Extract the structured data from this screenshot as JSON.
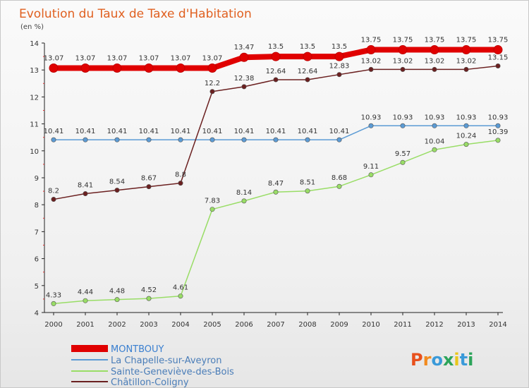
{
  "chart_data": {
    "type": "line",
    "title": "Evolution du Taux de Taxe d'Habitation",
    "unit_label": "(en %)",
    "x": [
      "2000",
      "2001",
      "2002",
      "2003",
      "2004",
      "2005",
      "2006",
      "2007",
      "2008",
      "2009",
      "2010",
      "2011",
      "2012",
      "2013",
      "2014"
    ],
    "ylim": [
      4,
      14
    ],
    "yticks": [
      4,
      5,
      6,
      7,
      8,
      9,
      10,
      11,
      12,
      13,
      14
    ],
    "grid": false,
    "legend_position": "bottom-left",
    "series": [
      {
        "name": "MONTBOUY",
        "color": "#e00000",
        "labels": [
          "13.07",
          "13.07",
          "13.07",
          "13.07",
          "13.07",
          "13.07",
          "13.47",
          "13.5",
          "13.5",
          "13.5",
          "13.75",
          "13.75",
          "13.75",
          "13.75",
          "13.75"
        ],
        "values": [
          13.07,
          13.07,
          13.07,
          13.07,
          13.07,
          13.07,
          13.47,
          13.5,
          13.5,
          13.5,
          13.75,
          13.75,
          13.75,
          13.75,
          13.75
        ]
      },
      {
        "name": "La Chapelle-sur-Aveyron",
        "color": "#5b9bd5",
        "labels": [
          "10.41",
          "10.41",
          "10.41",
          "10.41",
          "10.41",
          "10.41",
          "10.41",
          "10.41",
          "10.41",
          "10.41",
          "10.93",
          "10.93",
          "10.93",
          "10.93",
          "10.93"
        ],
        "values": [
          10.41,
          10.41,
          10.41,
          10.41,
          10.41,
          10.41,
          10.41,
          10.41,
          10.41,
          10.41,
          10.93,
          10.93,
          10.93,
          10.93,
          10.93
        ]
      },
      {
        "name": "Sainte-Geneviève-des-Bois",
        "color": "#99dd66",
        "labels": [
          "4.33",
          "4.44",
          "4.48",
          "4.52",
          "4.61",
          "7.83",
          "8.14",
          "8.47",
          "8.51",
          "8.68",
          "9.11",
          "9.57",
          "10.04",
          "10.24",
          "10.39"
        ],
        "values": [
          4.33,
          4.44,
          4.48,
          4.52,
          4.61,
          7.83,
          8.14,
          8.47,
          8.51,
          8.68,
          9.11,
          9.57,
          10.04,
          10.24,
          10.39
        ]
      },
      {
        "name": "Châtillon-Coligny",
        "color": "#6b2020",
        "labels": [
          "8.2",
          "8.41",
          "8.54",
          "8.67",
          "8.8",
          "12.2",
          "12.38",
          "12.64",
          "12.64",
          "12.83",
          "13.02",
          "13.02",
          "13.02",
          "13.02",
          "13.15"
        ],
        "values": [
          8.2,
          8.41,
          8.54,
          8.67,
          8.8,
          12.2,
          12.38,
          12.64,
          12.64,
          12.83,
          13.02,
          13.02,
          13.02,
          13.02,
          13.15
        ]
      }
    ]
  },
  "brand": {
    "text": "Proxiti",
    "letter_colors": [
      "#e8501c",
      "#f28a1e",
      "#3a9ad9",
      "#2ca45a",
      "#e8c61c",
      "#3a9ad9",
      "#2ca45a"
    ]
  }
}
